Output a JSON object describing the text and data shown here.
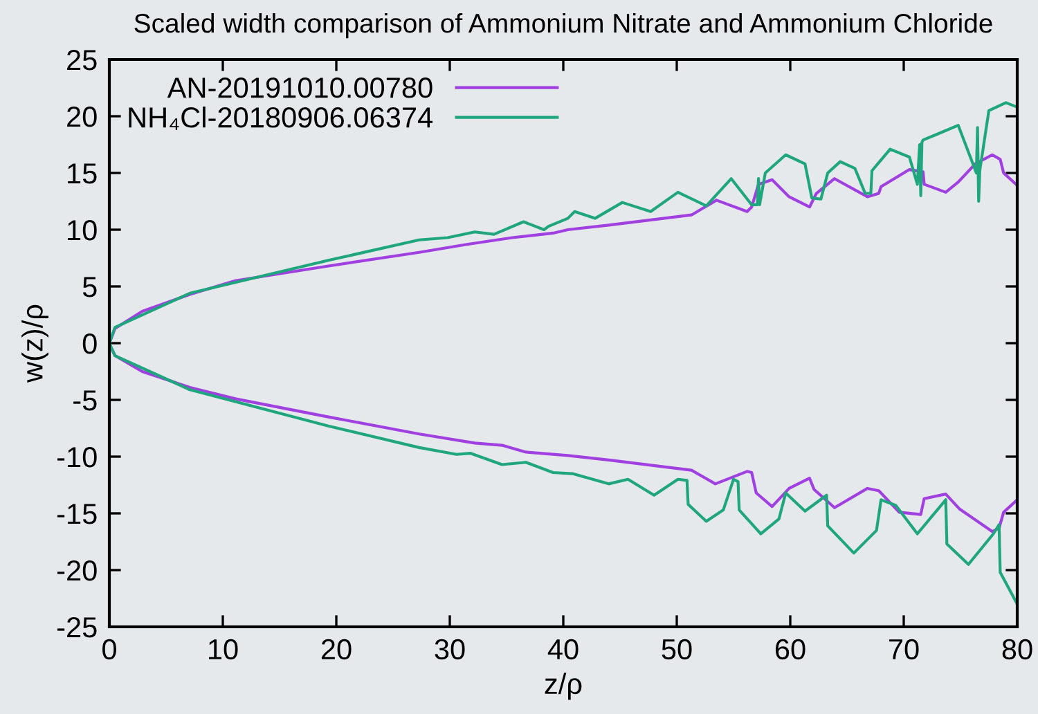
{
  "chart_data": {
    "type": "line",
    "title": "Scaled width comparison of Ammonium Nitrate and Ammonium Chloride",
    "xlabel": "z/ρ",
    "ylabel": "w(z)/ρ",
    "xlim": [
      0,
      80
    ],
    "xticks": [
      0,
      10,
      20,
      30,
      40,
      50,
      60,
      70,
      80
    ],
    "ylim": [
      -25,
      25
    ],
    "yticks": [
      -25,
      -20,
      -15,
      -10,
      -5,
      0,
      5,
      10,
      15,
      20,
      25
    ],
    "grid": false,
    "legend": "top left",
    "marker": "none",
    "line_style": "solid",
    "series": [
      {
        "name": "AN-20191010.00780",
        "color": "#a040e0",
        "x": [
          0,
          0.5,
          2.9,
          7.1,
          11.1,
          19.3,
          27.3,
          31.5,
          35.5,
          39.1,
          40.4,
          44,
          51.3,
          53.5,
          56.2,
          56.6,
          57.2,
          58.4,
          59.9,
          61.7,
          62.3,
          63.9,
          66.8,
          67.8,
          68,
          70.5,
          71.7,
          71.8,
          73.7,
          74.8,
          76.3,
          77.8,
          78.5,
          78.8,
          80
        ],
        "values": [
          0,
          1.3,
          2.8,
          4.3,
          5.5,
          6.8,
          8.0,
          8.7,
          9.3,
          9.7,
          10.0,
          10.4,
          11.3,
          12.6,
          11.6,
          12.0,
          14.0,
          14.4,
          12.9,
          12.0,
          13.2,
          14.5,
          12.9,
          13.2,
          13.8,
          15.3,
          15.1,
          14.0,
          13.3,
          14.2,
          15.8,
          16.6,
          16.2,
          15.0,
          13.9
        ]
      },
      {
        "color": "#a040e0",
        "x": [
          0,
          0.5,
          2.9,
          7.1,
          11.1,
          19.3,
          27.3,
          32.2,
          34.6,
          36.7,
          40.4,
          44,
          51.3,
          53.4,
          56.2,
          56.6,
          57,
          58.4,
          59.9,
          61.7,
          62.1,
          63.9,
          66.8,
          67.8,
          69.6,
          71.5,
          71.8,
          73.7,
          74.9,
          77.8,
          78.4,
          78.8,
          80
        ],
        "values": [
          -0.1,
          -1.1,
          -2.5,
          -3.9,
          -4.9,
          -6.5,
          -8.0,
          -8.8,
          -9.0,
          -9.6,
          -9.9,
          -10.3,
          -11.2,
          -12.4,
          -11.3,
          -11.4,
          -13.2,
          -14.4,
          -12.8,
          -11.9,
          -12.9,
          -14.5,
          -12.8,
          -13.0,
          -14.9,
          -15.1,
          -13.7,
          -13.3,
          -14.6,
          -16.6,
          -16.3,
          -14.9,
          -13.8
        ]
      },
      {
        "name": "NH₄Cl-20180906.06374",
        "color": "#20a67e",
        "x": [
          0,
          0.5,
          7.1,
          19.3,
          27.3,
          29.8,
          32.2,
          33.9,
          36.5,
          38.3,
          38.7,
          40.4,
          41,
          42.8,
          45.2,
          47.7,
          50.1,
          52.6,
          54.8,
          56.6,
          57.1,
          57.2,
          57.3,
          57.8,
          59.6,
          61.3,
          61.9,
          62.7,
          63.3,
          64.4,
          65.7,
          66.6,
          67.1,
          67.2,
          68.8,
          70.5,
          71.2,
          71.4,
          71.5,
          71.6,
          71.7,
          72.9,
          74.8,
          76.4,
          76.5,
          76.6,
          76.7,
          77.5,
          79,
          80
        ],
        "values": [
          0,
          1.4,
          4.4,
          7.3,
          9.1,
          9.3,
          9.8,
          9.6,
          10.7,
          10.0,
          10.3,
          11.0,
          11.6,
          11.0,
          12.4,
          11.6,
          13.3,
          12.1,
          14.5,
          12.2,
          12.2,
          14.5,
          12.2,
          15.0,
          16.6,
          15.8,
          12.8,
          12.7,
          15.0,
          16.0,
          15.4,
          13.2,
          13.2,
          15.2,
          17.1,
          16.4,
          14.0,
          17.5,
          13.0,
          17.7,
          17.9,
          18.4,
          19.2,
          15.0,
          19.0,
          12.5,
          15.2,
          20.5,
          21.2,
          20.8
        ]
      },
      {
        "color": "#20a67e",
        "x": [
          0,
          0.5,
          7.1,
          19.3,
          27.3,
          30.6,
          31.8,
          34.6,
          36.7,
          39.1,
          40.8,
          44,
          45.7,
          48,
          50.1,
          50.9,
          51,
          52.6,
          54.1,
          55,
          55.4,
          55.5,
          57.4,
          59,
          59.6,
          61.3,
          63.2,
          63.3,
          65.6,
          67.6,
          68,
          69.3,
          71.2,
          73.7,
          73.8,
          75.7,
          77.9,
          78.4,
          78.5,
          80
        ],
        "values": [
          0,
          -1.1,
          -4.1,
          -7.3,
          -9.2,
          -9.8,
          -9.7,
          -10.7,
          -10.5,
          -11.4,
          -11.5,
          -12.4,
          -12.0,
          -13.4,
          -12.0,
          -12.1,
          -14.2,
          -15.7,
          -14.7,
          -12.0,
          -12.2,
          -14.7,
          -16.8,
          -15.5,
          -13.2,
          -14.8,
          -13.4,
          -16.1,
          -18.5,
          -16.5,
          -13.8,
          -14.3,
          -16.8,
          -13.8,
          -17.7,
          -19.5,
          -16.8,
          -16.0,
          -20.2,
          -23.0
        ]
      }
    ]
  }
}
